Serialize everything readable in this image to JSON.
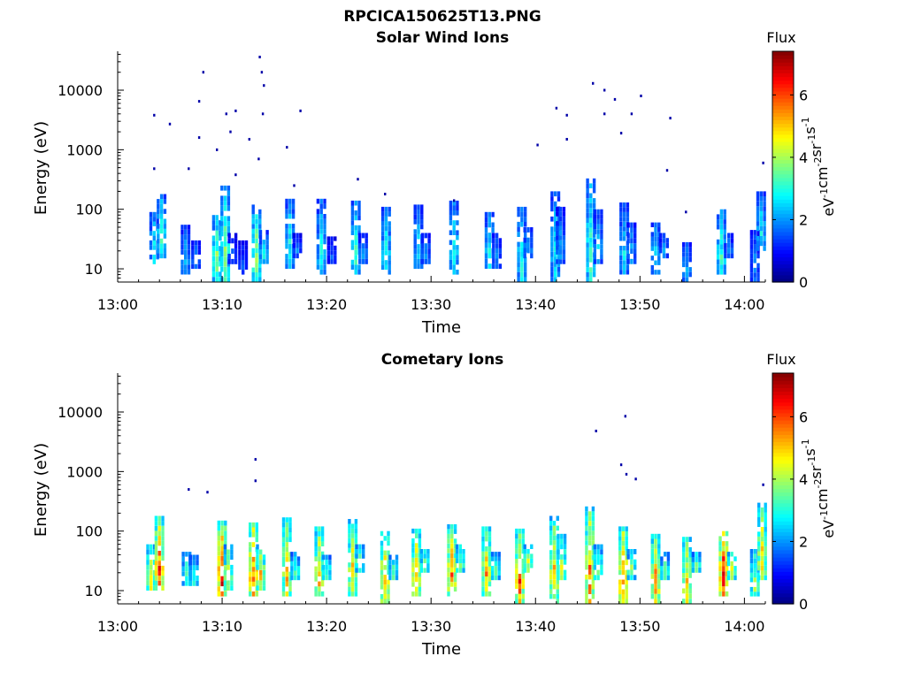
{
  "figure": {
    "title": "RPCICA150625T13.PNG"
  },
  "panels": [
    {
      "key": "sw",
      "title": "Solar Wind Ions",
      "xlabel": "Time",
      "ylabel": "Energy (eV)"
    },
    {
      "key": "cm",
      "title": "Cometary Ions",
      "xlabel": "Time",
      "ylabel": "Energy (eV)"
    }
  ],
  "colorbar": {
    "title": "Flux",
    "unit_base": [
      "eV",
      "cm",
      "sr",
      "s"
    ],
    "unit_exp": [
      "-1",
      "-2",
      "-1",
      "-1"
    ],
    "ticks": [
      "0",
      "2",
      "4",
      "6"
    ],
    "range": [
      0,
      7.4
    ],
    "colormap": "jet"
  },
  "chart_data": [
    {
      "type": "heatmap",
      "title": "Solar Wind Ions",
      "xlabel": "Time",
      "ylabel": "Energy (eV)",
      "yscale": "log",
      "x_ticks": [
        "13:00",
        "13:10",
        "13:20",
        "13:30",
        "13:40",
        "13:50",
        "14:00"
      ],
      "y_ticks": [
        "10",
        "100",
        "1000",
        "10000"
      ],
      "x_range": [
        "13:00",
        "14:02"
      ],
      "y_range": [
        6,
        45000
      ],
      "z_range": [
        0,
        7.4
      ],
      "columns": [
        {
          "t": 3.5,
          "lo": 12,
          "hi": 90,
          "peak": 2.8
        },
        {
          "t": 4.2,
          "lo": 15,
          "hi": 180,
          "peak": 3.2
        },
        {
          "t": 6.5,
          "lo": 8,
          "hi": 55,
          "peak": 2.4
        },
        {
          "t": 7.5,
          "lo": 10,
          "hi": 30,
          "peak": 2.0
        },
        {
          "t": 9.5,
          "lo": 6,
          "hi": 80,
          "peak": 3.8
        },
        {
          "t": 10.3,
          "lo": 6,
          "hi": 250,
          "peak": 3.6
        },
        {
          "t": 11.0,
          "lo": 12,
          "hi": 40,
          "peak": 1.8
        },
        {
          "t": 12.0,
          "lo": 8,
          "hi": 30,
          "peak": 1.6
        },
        {
          "t": 13.3,
          "lo": 6,
          "hi": 120,
          "peak": 4.0
        },
        {
          "t": 14.0,
          "lo": 10,
          "hi": 45,
          "peak": 2.8
        },
        {
          "t": 16.5,
          "lo": 10,
          "hi": 150,
          "peak": 3.0
        },
        {
          "t": 17.2,
          "lo": 15,
          "hi": 40,
          "peak": 1.8
        },
        {
          "t": 19.5,
          "lo": 8,
          "hi": 150,
          "peak": 2.8
        },
        {
          "t": 20.5,
          "lo": 12,
          "hi": 35,
          "peak": 1.6
        },
        {
          "t": 22.8,
          "lo": 8,
          "hi": 140,
          "peak": 3.2
        },
        {
          "t": 23.5,
          "lo": 12,
          "hi": 40,
          "peak": 2.2
        },
        {
          "t": 25.7,
          "lo": 8,
          "hi": 110,
          "peak": 3.0
        },
        {
          "t": 28.8,
          "lo": 10,
          "hi": 120,
          "peak": 2.6
        },
        {
          "t": 29.5,
          "lo": 12,
          "hi": 40,
          "peak": 2.2
        },
        {
          "t": 32.2,
          "lo": 8,
          "hi": 140,
          "peak": 3.0
        },
        {
          "t": 35.6,
          "lo": 10,
          "hi": 90,
          "peak": 3.0
        },
        {
          "t": 36.3,
          "lo": 10,
          "hi": 40,
          "peak": 2.0
        },
        {
          "t": 38.7,
          "lo": 6,
          "hi": 110,
          "peak": 3.0
        },
        {
          "t": 39.3,
          "lo": 15,
          "hi": 50,
          "peak": 2.4
        },
        {
          "t": 41.9,
          "lo": 6,
          "hi": 200,
          "peak": 2.8
        },
        {
          "t": 42.4,
          "lo": 12,
          "hi": 110,
          "peak": 2.2
        },
        {
          "t": 45.3,
          "lo": 6,
          "hi": 330,
          "peak": 3.4
        },
        {
          "t": 46.0,
          "lo": 12,
          "hi": 100,
          "peak": 2.4
        },
        {
          "t": 48.5,
          "lo": 8,
          "hi": 130,
          "peak": 2.6
        },
        {
          "t": 49.2,
          "lo": 12,
          "hi": 60,
          "peak": 2.2
        },
        {
          "t": 51.5,
          "lo": 8,
          "hi": 60,
          "peak": 2.8
        },
        {
          "t": 52.3,
          "lo": 15,
          "hi": 40,
          "peak": 2.0
        },
        {
          "t": 54.5,
          "lo": 6,
          "hi": 28,
          "peak": 2.4
        },
        {
          "t": 57.8,
          "lo": 8,
          "hi": 100,
          "peak": 3.2
        },
        {
          "t": 58.5,
          "lo": 15,
          "hi": 40,
          "peak": 2.0
        },
        {
          "t": 61.0,
          "lo": 6,
          "hi": 45,
          "peak": 2.0
        },
        {
          "t": 61.6,
          "lo": 20,
          "hi": 200,
          "peak": 2.8
        }
      ],
      "scatter": [
        {
          "t": 3.5,
          "e": 3800
        },
        {
          "t": 3.5,
          "e": 480
        },
        {
          "t": 5.0,
          "e": 2700
        },
        {
          "t": 6.8,
          "e": 480
        },
        {
          "t": 7.8,
          "e": 6500
        },
        {
          "t": 7.8,
          "e": 1600
        },
        {
          "t": 8.2,
          "e": 20000
        },
        {
          "t": 9.5,
          "e": 1000
        },
        {
          "t": 10.4,
          "e": 4000
        },
        {
          "t": 10.8,
          "e": 2000
        },
        {
          "t": 11.3,
          "e": 4500
        },
        {
          "t": 11.3,
          "e": 380
        },
        {
          "t": 12.6,
          "e": 1500
        },
        {
          "t": 13.6,
          "e": 36000
        },
        {
          "t": 13.8,
          "e": 20000
        },
        {
          "t": 14.0,
          "e": 12000
        },
        {
          "t": 13.9,
          "e": 4000
        },
        {
          "t": 13.5,
          "e": 700
        },
        {
          "t": 16.2,
          "e": 1100
        },
        {
          "t": 16.9,
          "e": 250
        },
        {
          "t": 17.5,
          "e": 4500
        },
        {
          "t": 23.0,
          "e": 320
        },
        {
          "t": 25.6,
          "e": 180
        },
        {
          "t": 32.2,
          "e": 140
        },
        {
          "t": 40.2,
          "e": 1200
        },
        {
          "t": 42.0,
          "e": 5000
        },
        {
          "t": 43.0,
          "e": 3800
        },
        {
          "t": 43.0,
          "e": 1500
        },
        {
          "t": 45.5,
          "e": 13000
        },
        {
          "t": 46.6,
          "e": 10000
        },
        {
          "t": 46.6,
          "e": 4000
        },
        {
          "t": 47.6,
          "e": 7000
        },
        {
          "t": 48.2,
          "e": 1900
        },
        {
          "t": 49.2,
          "e": 4000
        },
        {
          "t": 50.1,
          "e": 8000
        },
        {
          "t": 52.9,
          "e": 3400
        },
        {
          "t": 52.6,
          "e": 450
        },
        {
          "t": 54.4,
          "e": 90
        },
        {
          "t": 61.8,
          "e": 600
        }
      ]
    },
    {
      "type": "heatmap",
      "title": "Cometary Ions",
      "xlabel": "Time",
      "ylabel": "Energy (eV)",
      "yscale": "log",
      "x_ticks": [
        "13:00",
        "13:10",
        "13:20",
        "13:30",
        "13:40",
        "13:50",
        "14:00"
      ],
      "y_ticks": [
        "10",
        "100",
        "1000",
        "10000"
      ],
      "x_range": [
        "13:00",
        "14:02"
      ],
      "y_range": [
        6,
        45000
      ],
      "z_range": [
        0,
        7.4
      ],
      "columns": [
        {
          "t": 3.2,
          "lo": 10,
          "hi": 60,
          "peak": 4.8
        },
        {
          "t": 4.0,
          "lo": 10,
          "hi": 180,
          "peak": 6.0
        },
        {
          "t": 6.6,
          "lo": 12,
          "hi": 45,
          "peak": 3.6
        },
        {
          "t": 7.3,
          "lo": 12,
          "hi": 40,
          "peak": 3.2
        },
        {
          "t": 10.0,
          "lo": 8,
          "hi": 150,
          "peak": 6.5
        },
        {
          "t": 10.6,
          "lo": 10,
          "hi": 60,
          "peak": 4.4
        },
        {
          "t": 13.0,
          "lo": 8,
          "hi": 140,
          "peak": 6.2
        },
        {
          "t": 13.7,
          "lo": 10,
          "hi": 60,
          "peak": 5.0
        },
        {
          "t": 16.2,
          "lo": 8,
          "hi": 170,
          "peak": 5.2
        },
        {
          "t": 17.0,
          "lo": 15,
          "hi": 45,
          "peak": 3.6
        },
        {
          "t": 19.3,
          "lo": 8,
          "hi": 120,
          "peak": 5.2
        },
        {
          "t": 20.0,
          "lo": 15,
          "hi": 40,
          "peak": 3.6
        },
        {
          "t": 22.5,
          "lo": 8,
          "hi": 160,
          "peak": 5.0
        },
        {
          "t": 23.2,
          "lo": 20,
          "hi": 60,
          "peak": 3.8
        },
        {
          "t": 25.6,
          "lo": 6,
          "hi": 100,
          "peak": 5.6
        },
        {
          "t": 26.4,
          "lo": 15,
          "hi": 40,
          "peak": 3.6
        },
        {
          "t": 28.6,
          "lo": 8,
          "hi": 110,
          "peak": 5.4
        },
        {
          "t": 29.4,
          "lo": 20,
          "hi": 50,
          "peak": 4.0
        },
        {
          "t": 32.0,
          "lo": 8,
          "hi": 130,
          "peak": 5.8
        },
        {
          "t": 32.8,
          "lo": 20,
          "hi": 60,
          "peak": 4.0
        },
        {
          "t": 35.3,
          "lo": 8,
          "hi": 120,
          "peak": 5.4
        },
        {
          "t": 36.2,
          "lo": 15,
          "hi": 45,
          "peak": 3.6
        },
        {
          "t": 38.5,
          "lo": 6,
          "hi": 110,
          "peak": 5.8
        },
        {
          "t": 39.3,
          "lo": 20,
          "hi": 60,
          "peak": 4.6
        },
        {
          "t": 41.8,
          "lo": 6,
          "hi": 180,
          "peak": 5.2
        },
        {
          "t": 42.5,
          "lo": 15,
          "hi": 90,
          "peak": 4.4
        },
        {
          "t": 45.2,
          "lo": 6,
          "hi": 260,
          "peak": 5.6
        },
        {
          "t": 46.0,
          "lo": 15,
          "hi": 60,
          "peak": 4.0
        },
        {
          "t": 48.4,
          "lo": 6,
          "hi": 120,
          "peak": 6.0
        },
        {
          "t": 49.2,
          "lo": 15,
          "hi": 50,
          "peak": 3.8
        },
        {
          "t": 51.5,
          "lo": 6,
          "hi": 90,
          "peak": 5.6
        },
        {
          "t": 52.4,
          "lo": 15,
          "hi": 45,
          "peak": 3.6
        },
        {
          "t": 54.5,
          "lo": 6,
          "hi": 80,
          "peak": 5.2
        },
        {
          "t": 55.4,
          "lo": 20,
          "hi": 45,
          "peak": 3.8
        },
        {
          "t": 58.0,
          "lo": 8,
          "hi": 100,
          "peak": 6.8
        },
        {
          "t": 58.8,
          "lo": 15,
          "hi": 45,
          "peak": 4.4
        },
        {
          "t": 61.0,
          "lo": 8,
          "hi": 50,
          "peak": 4.2
        },
        {
          "t": 61.7,
          "lo": 15,
          "hi": 300,
          "peak": 5.0
        }
      ],
      "scatter": [
        {
          "t": 6.8,
          "e": 500
        },
        {
          "t": 8.6,
          "e": 450
        },
        {
          "t": 13.2,
          "e": 1600
        },
        {
          "t": 13.2,
          "e": 700
        },
        {
          "t": 45.8,
          "e": 4800
        },
        {
          "t": 48.6,
          "e": 8500
        },
        {
          "t": 48.2,
          "e": 1300
        },
        {
          "t": 48.7,
          "e": 900
        },
        {
          "t": 49.6,
          "e": 750
        },
        {
          "t": 61.8,
          "e": 600
        }
      ]
    }
  ]
}
